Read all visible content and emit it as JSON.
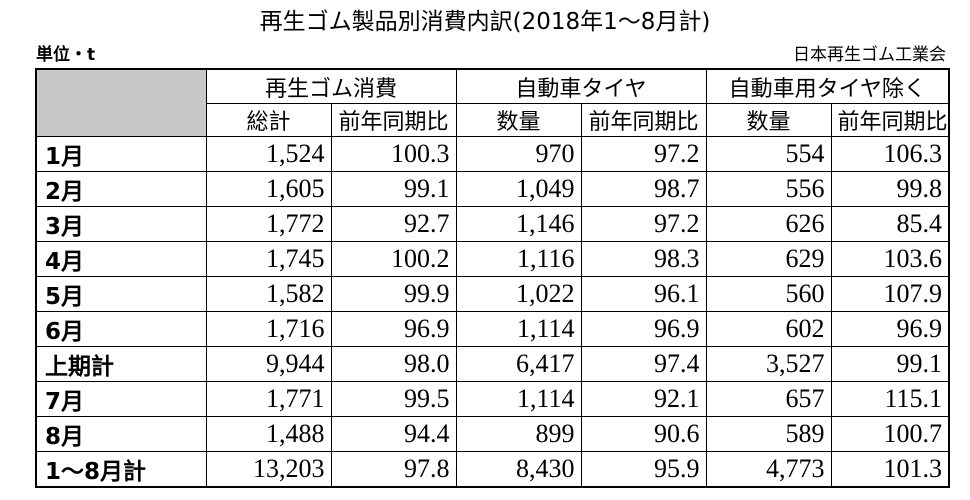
{
  "title": "再生ゴム製品別消費内訳(2018年1～8月計)",
  "unit": "単位・t",
  "source": "日本再生ゴム工業会",
  "table": {
    "groups": [
      "再生ゴム消費",
      "自動車タイヤ",
      "自動車用タイヤ除く"
    ],
    "subheaders": [
      "総計",
      "前年同期比",
      "数量",
      "前年同期比",
      "数量",
      "前年同期比"
    ],
    "rows": [
      [
        "1月",
        "1,524",
        "100.3",
        "970",
        "97.2",
        "554",
        "106.3"
      ],
      [
        "2月",
        "1,605",
        "99.1",
        "1,049",
        "98.7",
        "556",
        "99.8"
      ],
      [
        "3月",
        "1,772",
        "92.7",
        "1,146",
        "97.2",
        "626",
        "85.4"
      ],
      [
        "4月",
        "1,745",
        "100.2",
        "1,116",
        "98.3",
        "629",
        "103.6"
      ],
      [
        "5月",
        "1,582",
        "99.9",
        "1,022",
        "96.1",
        "560",
        "107.9"
      ],
      [
        "6月",
        "1,716",
        "96.9",
        "1,114",
        "96.9",
        "602",
        "96.9"
      ],
      [
        "上期計",
        "9,944",
        "98.0",
        "6,417",
        "97.4",
        "3,527",
        "99.1"
      ],
      [
        "7月",
        "1,771",
        "99.5",
        "1,114",
        "92.1",
        "657",
        "115.1"
      ],
      [
        "8月",
        "1,488",
        "94.4",
        "899",
        "90.6",
        "589",
        "100.7"
      ],
      [
        "1～8月計",
        "13,203",
        "97.8",
        "8,430",
        "95.9",
        "4,773",
        "101.3"
      ]
    ]
  }
}
